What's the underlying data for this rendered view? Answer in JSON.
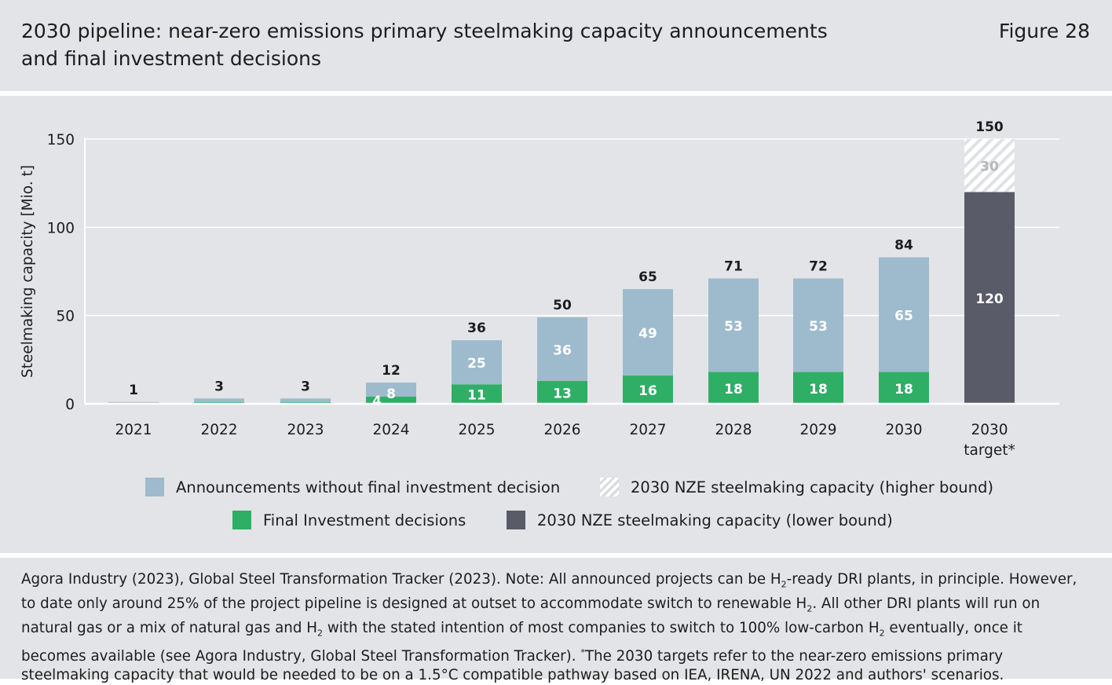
{
  "header": {
    "title": "2030 pipeline: near-zero emissions primary steelmaking capacity announcements and final investment decisions",
    "figure_label": "Figure 28"
  },
  "colors": {
    "announcements": "#9dbbcc",
    "fid": "#2fae66",
    "nze_lower": "#5a5b68",
    "hatch": "#dfe1e5",
    "background": "#e3e4e7"
  },
  "legend": {
    "announcements": "Announcements without final investment decision",
    "nze_higher": "2030 NZE steelmaking capacity (higher bound)",
    "fid": "Final Investment decisions",
    "nze_lower": "2030 NZE steelmaking capacity (lower bound)"
  },
  "chart_data": {
    "type": "bar",
    "stacked": true,
    "ylabel": "Steelmaking capacity [Mio. t]",
    "xlabel": "",
    "ylim": [
      0,
      150
    ],
    "yticks": [
      0,
      50,
      100,
      150
    ],
    "grid": true,
    "legend_position": "bottom",
    "categories": [
      "2021",
      "2022",
      "2023",
      "2024",
      "2025",
      "2026",
      "2027",
      "2028",
      "2029",
      "2030",
      "2030 target*"
    ],
    "series": [
      {
        "name": "Final Investment decisions",
        "values": [
          0,
          1,
          1,
          4,
          11,
          13,
          16,
          18,
          18,
          18,
          0
        ],
        "labels": [
          "",
          "",
          "",
          "4",
          "11",
          "13",
          "16",
          "18",
          "18",
          "18",
          ""
        ]
      },
      {
        "name": "Announcements without final investment decision",
        "values": [
          1,
          2,
          2,
          8,
          25,
          36,
          49,
          53,
          53,
          65,
          0
        ],
        "labels": [
          "",
          "",
          "",
          "8",
          "25",
          "36",
          "49",
          "53",
          "53",
          "65",
          ""
        ]
      },
      {
        "name": "2030 NZE steelmaking capacity (lower bound)",
        "values": [
          0,
          0,
          0,
          0,
          0,
          0,
          0,
          0,
          0,
          0,
          120
        ],
        "labels": [
          "",
          "",
          "",
          "",
          "",
          "",
          "",
          "",
          "",
          "",
          "120"
        ]
      },
      {
        "name": "2030 NZE steelmaking capacity (higher bound)",
        "values": [
          0,
          0,
          0,
          0,
          0,
          0,
          0,
          0,
          0,
          0,
          30
        ],
        "labels": [
          "",
          "",
          "",
          "",
          "",
          "",
          "",
          "",
          "",
          "",
          "30"
        ]
      }
    ],
    "totals": [
      "1",
      "3",
      "3",
      "12",
      "36",
      "50",
      "65",
      "71",
      "72",
      "84",
      "150"
    ]
  },
  "footer": {
    "source_note_parts": [
      "Agora Industry (2023), Global Steel Transformation Tracker (2023). Note: All announced projects can be H",
      "2",
      "-ready DRI plants, in principle. However, to date only around 25% of the project pipeline is designed at outset to accommodate switch to renewable H",
      "2",
      ". All other DRI plants will run on natural gas or a mix of natural gas and H",
      "2",
      " with the stated intention of most companies to switch to 100% low-carbon H",
      "2",
      " eventually, once it becomes available (see Agora Industry, Global Steel Transformation Tracker). ",
      "*",
      "The 2030 targets refer to the near-zero emissions primary steelmaking capacity that would be needed to be on a 1.5°C compatible pathway based on IEA, IRENA, UN 2022 and authors' scenarios."
    ]
  }
}
